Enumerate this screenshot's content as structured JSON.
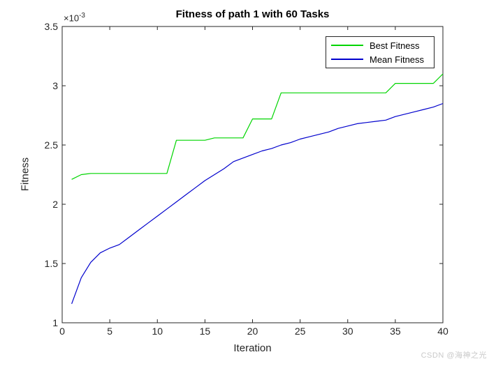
{
  "figure": {
    "watermark": "CSDN @海神之光"
  },
  "chart_data": {
    "type": "line",
    "title": "Fitness of path 1 with 60 Tasks",
    "xlabel": "Iteration",
    "ylabel": "Fitness",
    "y_exponent": {
      "base": "×10",
      "sup": "-3"
    },
    "grid": false,
    "axis_color": "#262626",
    "xlim": [
      0,
      40
    ],
    "ylim": [
      0.001,
      0.0035
    ],
    "ylim_display": [
      1,
      3.5
    ],
    "values_scale": "1e-3",
    "x_ticks": {
      "values": [
        0,
        5,
        10,
        15,
        20,
        25,
        30,
        35,
        40
      ],
      "labels": [
        "0",
        "5",
        "10",
        "15",
        "20",
        "25",
        "30",
        "35",
        "40"
      ]
    },
    "y_ticks": {
      "values": [
        1,
        1.5,
        2,
        2.5,
        3,
        3.5
      ],
      "labels": [
        "1",
        "1.5",
        "2",
        "2.5",
        "3",
        "3.5"
      ]
    },
    "legend": {
      "position": "top-right"
    },
    "x": [
      1,
      2,
      3,
      4,
      5,
      6,
      7,
      8,
      9,
      10,
      11,
      12,
      13,
      14,
      15,
      16,
      17,
      18,
      19,
      20,
      21,
      22,
      23,
      24,
      25,
      26,
      27,
      28,
      29,
      30,
      31,
      32,
      33,
      34,
      35,
      36,
      37,
      38,
      39,
      40
    ],
    "series": [
      {
        "name": "Best Fitness",
        "color": "#00d500",
        "values": [
          2.21,
          2.25,
          2.26,
          2.26,
          2.26,
          2.26,
          2.26,
          2.26,
          2.26,
          2.26,
          2.26,
          2.54,
          2.54,
          2.54,
          2.54,
          2.56,
          2.56,
          2.56,
          2.56,
          2.72,
          2.72,
          2.72,
          2.94,
          2.94,
          2.94,
          2.94,
          2.94,
          2.94,
          2.94,
          2.94,
          2.94,
          2.94,
          2.94,
          2.94,
          3.02,
          3.02,
          3.02,
          3.02,
          3.02,
          3.1
        ]
      },
      {
        "name": "Mean Fitness",
        "color": "#0000cd",
        "values": [
          1.16,
          1.38,
          1.51,
          1.59,
          1.63,
          1.66,
          1.72,
          1.78,
          1.84,
          1.9,
          1.96,
          2.02,
          2.08,
          2.14,
          2.2,
          2.25,
          2.3,
          2.36,
          2.39,
          2.42,
          2.45,
          2.47,
          2.5,
          2.52,
          2.55,
          2.57,
          2.59,
          2.61,
          2.64,
          2.66,
          2.68,
          2.69,
          2.7,
          2.71,
          2.74,
          2.76,
          2.78,
          2.8,
          2.82,
          2.85
        ]
      }
    ]
  }
}
